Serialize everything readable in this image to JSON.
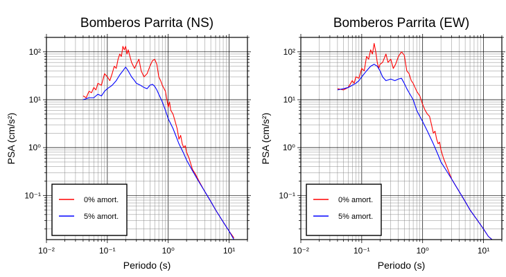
{
  "chart_data": [
    {
      "type": "line",
      "title": "Bomberos Parrita (NS)",
      "xlabel": "Periodo (s)",
      "ylabel": "PSA (cm/s²)",
      "xscale": "log",
      "yscale": "log",
      "xlim": [
        0.01,
        20
      ],
      "ylim": [
        0.012,
        200
      ],
      "x_ticks": [
        "10⁻²",
        "10⁻¹",
        "10⁰",
        "10¹"
      ],
      "y_ticks": [
        "10⁻¹",
        "10⁰",
        "10¹",
        "10²"
      ],
      "grid": true,
      "legend_position": "bottom-left",
      "series": [
        {
          "name": "0% amort.",
          "color": "#ff0000",
          "points": [
            [
              0.04,
              12
            ],
            [
              0.045,
              11
            ],
            [
              0.05,
              15
            ],
            [
              0.055,
              14
            ],
            [
              0.06,
              18
            ],
            [
              0.065,
              16
            ],
            [
              0.07,
              22
            ],
            [
              0.08,
              20
            ],
            [
              0.09,
              35
            ],
            [
              0.1,
              30
            ],
            [
              0.11,
              25
            ],
            [
              0.12,
              35
            ],
            [
              0.13,
              50
            ],
            [
              0.14,
              45
            ],
            [
              0.15,
              70
            ],
            [
              0.16,
              90
            ],
            [
              0.17,
              80
            ],
            [
              0.18,
              130
            ],
            [
              0.19,
              110
            ],
            [
              0.2,
              130
            ],
            [
              0.21,
              90
            ],
            [
              0.22,
              110
            ],
            [
              0.25,
              60
            ],
            [
              0.28,
              45
            ],
            [
              0.3,
              55
            ],
            [
              0.33,
              70
            ],
            [
              0.36,
              40
            ],
            [
              0.4,
              30
            ],
            [
              0.45,
              35
            ],
            [
              0.5,
              50
            ],
            [
              0.55,
              65
            ],
            [
              0.6,
              70
            ],
            [
              0.65,
              55
            ],
            [
              0.7,
              30
            ],
            [
              0.75,
              25
            ],
            [
              0.8,
              20
            ],
            [
              0.9,
              15
            ],
            [
              1.0,
              7
            ],
            [
              1.05,
              9
            ],
            [
              1.1,
              6
            ],
            [
              1.2,
              5
            ],
            [
              1.3,
              3.5
            ],
            [
              1.4,
              2.5
            ],
            [
              1.5,
              1.5
            ],
            [
              1.6,
              1.8
            ],
            [
              1.7,
              1.2
            ],
            [
              1.8,
              1.0
            ],
            [
              1.9,
              1.1
            ],
            [
              2.0,
              0.8
            ],
            [
              2.2,
              0.6
            ],
            [
              2.5,
              0.35
            ],
            [
              2.8,
              0.28
            ],
            [
              3.2,
              0.2
            ],
            [
              4,
              0.12
            ],
            [
              5,
              0.075
            ],
            [
              6,
              0.05
            ],
            [
              8,
              0.028
            ],
            [
              10,
              0.018
            ],
            [
              12,
              0.013
            ]
          ]
        },
        {
          "name": "5% amort.",
          "color": "#0000ff",
          "points": [
            [
              0.04,
              10
            ],
            [
              0.05,
              11
            ],
            [
              0.06,
              11
            ],
            [
              0.07,
              13
            ],
            [
              0.08,
              12
            ],
            [
              0.09,
              15
            ],
            [
              0.1,
              17
            ],
            [
              0.12,
              20
            ],
            [
              0.14,
              25
            ],
            [
              0.16,
              33
            ],
            [
              0.18,
              40
            ],
            [
              0.2,
              48
            ],
            [
              0.22,
              40
            ],
            [
              0.25,
              30
            ],
            [
              0.28,
              25
            ],
            [
              0.3,
              22
            ],
            [
              0.35,
              20
            ],
            [
              0.4,
              18
            ],
            [
              0.45,
              17
            ],
            [
              0.5,
              20
            ],
            [
              0.55,
              21
            ],
            [
              0.6,
              19
            ],
            [
              0.65,
              16
            ],
            [
              0.7,
              13
            ],
            [
              0.8,
              9
            ],
            [
              0.9,
              6
            ],
            [
              1.0,
              4
            ],
            [
              1.2,
              2.5
            ],
            [
              1.5,
              1.2
            ],
            [
              1.8,
              0.75
            ],
            [
              2.0,
              0.55
            ],
            [
              2.5,
              0.33
            ],
            [
              3.0,
              0.22
            ],
            [
              4,
              0.12
            ],
            [
              5,
              0.075
            ],
            [
              6,
              0.05
            ],
            [
              8,
              0.028
            ],
            [
              10,
              0.018
            ],
            [
              12,
              0.012
            ]
          ]
        }
      ]
    },
    {
      "type": "line",
      "title": "Bomberos Parrita (EW)",
      "xlabel": "Periodo (s)",
      "ylabel": "PSA (cm/s²)",
      "xscale": "log",
      "yscale": "log",
      "xlim": [
        0.01,
        20
      ],
      "ylim": [
        0.012,
        200
      ],
      "x_ticks": [
        "10⁻²",
        "10⁻¹",
        "10⁰",
        "10¹"
      ],
      "y_ticks": [
        "10⁻¹",
        "10⁰",
        "10¹",
        "10²"
      ],
      "grid": true,
      "legend_position": "bottom-left",
      "series": [
        {
          "name": "0% amort.",
          "color": "#ff0000",
          "points": [
            [
              0.04,
              17
            ],
            [
              0.05,
              16
            ],
            [
              0.06,
              18
            ],
            [
              0.07,
              25
            ],
            [
              0.075,
              22
            ],
            [
              0.08,
              30
            ],
            [
              0.09,
              28
            ],
            [
              0.1,
              45
            ],
            [
              0.11,
              40
            ],
            [
              0.12,
              80
            ],
            [
              0.13,
              70
            ],
            [
              0.14,
              110
            ],
            [
              0.15,
              90
            ],
            [
              0.16,
              150
            ],
            [
              0.17,
              100
            ],
            [
              0.18,
              60
            ],
            [
              0.19,
              45
            ],
            [
              0.2,
              55
            ],
            [
              0.22,
              60
            ],
            [
              0.25,
              90
            ],
            [
              0.27,
              60
            ],
            [
              0.3,
              70
            ],
            [
              0.33,
              45
            ],
            [
              0.36,
              55
            ],
            [
              0.4,
              80
            ],
            [
              0.45,
              100
            ],
            [
              0.5,
              85
            ],
            [
              0.55,
              40
            ],
            [
              0.6,
              35
            ],
            [
              0.65,
              25
            ],
            [
              0.7,
              22
            ],
            [
              0.8,
              15
            ],
            [
              0.9,
              12
            ],
            [
              1.0,
              8
            ],
            [
              1.1,
              6
            ],
            [
              1.2,
              5
            ],
            [
              1.3,
              4.5
            ],
            [
              1.4,
              3
            ],
            [
              1.5,
              2.0
            ],
            [
              1.6,
              2.2
            ],
            [
              1.7,
              1.5
            ],
            [
              1.8,
              1.2
            ],
            [
              1.9,
              1.3
            ],
            [
              2.0,
              0.9
            ],
            [
              2.2,
              0.6
            ],
            [
              2.5,
              0.4
            ],
            [
              3.0,
              0.22
            ],
            [
              4,
              0.12
            ],
            [
              5,
              0.075
            ],
            [
              6,
              0.05
            ],
            [
              8,
              0.03
            ],
            [
              10,
              0.02
            ],
            [
              12,
              0.014
            ],
            [
              15,
              0.011
            ]
          ]
        },
        {
          "name": "5% amort.",
          "color": "#0000ff",
          "points": [
            [
              0.04,
              16
            ],
            [
              0.05,
              17
            ],
            [
              0.06,
              18
            ],
            [
              0.07,
              20
            ],
            [
              0.08,
              22
            ],
            [
              0.09,
              25
            ],
            [
              0.1,
              30
            ],
            [
              0.12,
              40
            ],
            [
              0.14,
              50
            ],
            [
              0.16,
              55
            ],
            [
              0.18,
              50
            ],
            [
              0.2,
              40
            ],
            [
              0.22,
              30
            ],
            [
              0.25,
              25
            ],
            [
              0.3,
              27
            ],
            [
              0.35,
              25
            ],
            [
              0.4,
              27
            ],
            [
              0.45,
              28
            ],
            [
              0.5,
              22
            ],
            [
              0.55,
              17
            ],
            [
              0.6,
              14
            ],
            [
              0.7,
              10
            ],
            [
              0.8,
              6
            ],
            [
              0.9,
              4.5
            ],
            [
              1.0,
              3.5
            ],
            [
              1.2,
              2.2
            ],
            [
              1.5,
              1.2
            ],
            [
              1.8,
              0.7
            ],
            [
              2.0,
              0.5
            ],
            [
              2.5,
              0.32
            ],
            [
              3.0,
              0.22
            ],
            [
              4,
              0.12
            ],
            [
              5,
              0.075
            ],
            [
              6,
              0.05
            ],
            [
              8,
              0.03
            ],
            [
              10,
              0.02
            ],
            [
              12,
              0.014
            ],
            [
              15,
              0.011
            ]
          ]
        }
      ]
    }
  ]
}
